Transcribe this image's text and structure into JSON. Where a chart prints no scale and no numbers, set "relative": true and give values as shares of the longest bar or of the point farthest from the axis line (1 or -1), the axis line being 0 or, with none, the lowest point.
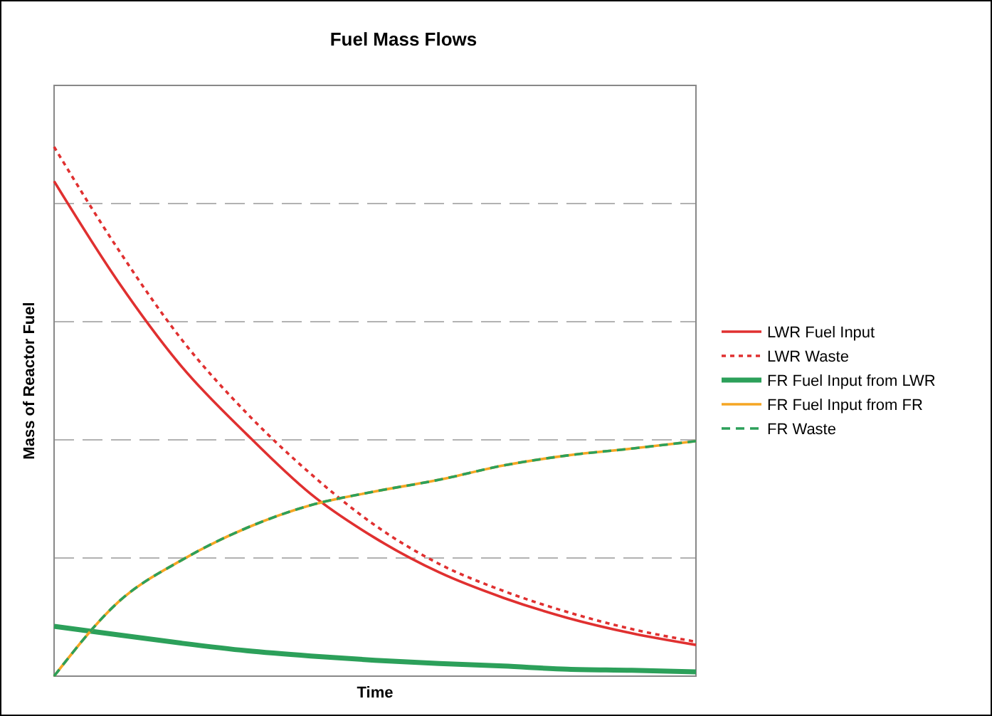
{
  "chart_data": {
    "type": "line",
    "title": "Fuel Mass Flows",
    "xlabel": "Time",
    "ylabel": "Mass of Reactor Fuel",
    "relative": true,
    "grid": true,
    "legend": "right",
    "categories": [
      null,
      null,
      null,
      null,
      null,
      null,
      null,
      null,
      null,
      null,
      null
    ],
    "series": [
      {
        "name": "LWR Fuel Input",
        "color": "#e03030",
        "line_style": "solid",
        "values": [
          0.935,
          0.745,
          0.583,
          0.457,
          0.344,
          0.261,
          0.196,
          0.148,
          0.11,
          0.081,
          0.059
        ]
      },
      {
        "name": "LWR Waste",
        "color": "#e03030",
        "line_style": "dotted",
        "values": [
          1,
          0.806,
          0.634,
          0.497,
          0.382,
          0.285,
          0.212,
          0.161,
          0.121,
          0.089,
          0.065
        ]
      },
      {
        "name": "FR Fuel Input from LWR",
        "color": "#2ca05a",
        "line_style": "solid",
        "values": [
          0.094,
          0.078,
          0.062,
          0.048,
          0.038,
          0.03,
          0.024,
          0.019,
          0.013,
          0.011,
          0.008
        ]
      },
      {
        "name": "FR Fuel Input from FR",
        "color": "#f5a623",
        "line_style": "solid",
        "values": [
          0,
          0.14,
          0.22,
          0.28,
          0.323,
          0.349,
          0.371,
          0.398,
          0.417,
          0.43,
          0.444
        ]
      },
      {
        "name": "FR Waste",
        "color": "#2ca05a",
        "line_style": "dashed",
        "values": [
          0,
          0.14,
          0.22,
          0.28,
          0.323,
          0.349,
          0.371,
          0.398,
          0.417,
          0.43,
          0.444
        ]
      }
    ]
  }
}
